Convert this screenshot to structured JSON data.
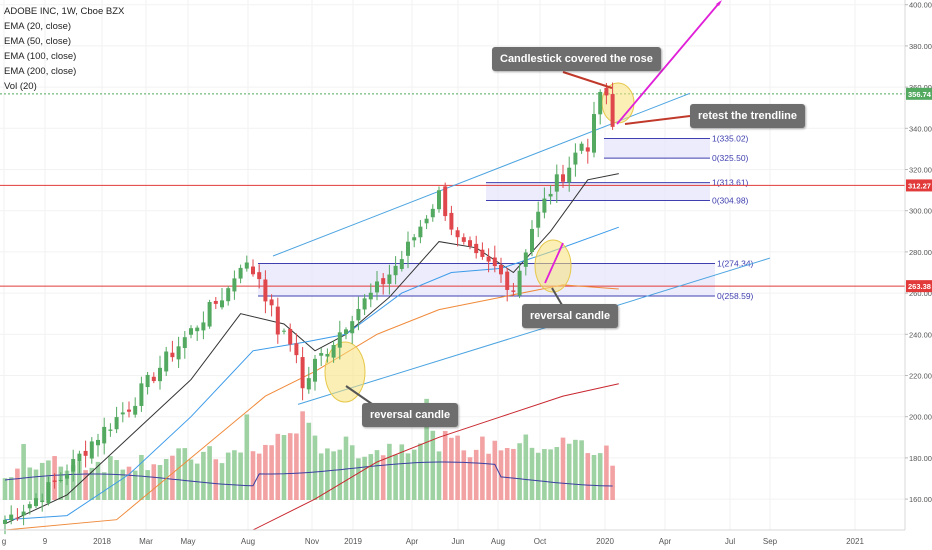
{
  "legend": {
    "symbol": "ADOBE INC, 1W, Cboe BZX",
    "indicators": [
      "EMA (20, close)",
      "EMA (50, close)",
      "EMA (100, close)",
      "EMA (200, close)",
      "Vol (20)"
    ]
  },
  "annotations": {
    "candlestick_covered": "Candlestick covered the rose",
    "retest": "retest the trendline",
    "reversal_1": "reversal candle",
    "reversal_2": "reversal candle"
  },
  "colors": {
    "up": "#53a960",
    "down": "#e0474c",
    "vol_up": "#9fd2a3",
    "vol_down": "#f3a2a3",
    "ema20": "#333333",
    "ema50": "#3d9be9",
    "ema100": "#f08a3b",
    "ema200": "#c8262e",
    "vol_ma": "#3a3fa0",
    "channel": "#4aa3e0",
    "fib": "#3f3fb0",
    "hline": "#e23a3a",
    "arrow": "#e020d8",
    "highlight": "#f7e27a",
    "callout": "#6e6e6e"
  },
  "chart_data": {
    "type": "candlestick",
    "timeframe": "1W",
    "y_axis_ticks": [
      160,
      180,
      200,
      220,
      240,
      260,
      280,
      300,
      320,
      340,
      360,
      380,
      400
    ],
    "ylim": [
      145,
      405
    ],
    "x_axis_ticks": [
      "g",
      "9",
      "2018",
      "Mar",
      "May",
      "Aug",
      "Nov",
      "2019",
      "Apr",
      "Jun",
      "Aug",
      "Oct",
      "2020",
      "Apr",
      "Jul",
      "Sep",
      "2021"
    ],
    "price_labels": [
      {
        "label": "356.74",
        "value": 356.74,
        "color": "#53a960"
      },
      {
        "label": "312.27",
        "value": 312.27,
        "color": "#e23a3a"
      },
      {
        "label": "263.38",
        "value": 263.38,
        "color": "#e23a3a"
      }
    ],
    "horizontal_lines": [
      {
        "value": 356.74,
        "style": "dotted",
        "color": "#53a960"
      },
      {
        "value": 312.27,
        "style": "solid",
        "color": "#e23a3a"
      },
      {
        "value": 263.38,
        "style": "solid",
        "color": "#e23a3a"
      }
    ],
    "fib_zones": [
      {
        "top": 274.34,
        "bottom": 258.59,
        "top_label": "1(274.34)",
        "bottom_label": "0(258.59)"
      },
      {
        "top": 313.61,
        "bottom": 304.98,
        "top_label": "1(313.61)",
        "bottom_label": "0(304.98)"
      },
      {
        "top": 335.02,
        "bottom": 325.5,
        "top_label": "1(335.02)",
        "bottom_label": "0(325.50)"
      }
    ],
    "close_anchors": [
      [
        0,
        150
      ],
      [
        4,
        158
      ],
      [
        9,
        170
      ],
      [
        14,
        188
      ],
      [
        20,
        205
      ],
      [
        26,
        228
      ],
      [
        31,
        245
      ],
      [
        36,
        262
      ],
      [
        38,
        275
      ],
      [
        41,
        268
      ],
      [
        44,
        242
      ],
      [
        47,
        232
      ],
      [
        48,
        213
      ],
      [
        50,
        226
      ],
      [
        53,
        237
      ],
      [
        56,
        250
      ],
      [
        60,
        262
      ],
      [
        64,
        277
      ],
      [
        68,
        298
      ],
      [
        70,
        308
      ],
      [
        73,
        285
      ],
      [
        76,
        276
      ],
      [
        79,
        272
      ],
      [
        82,
        262
      ],
      [
        85,
        292
      ],
      [
        88,
        310
      ],
      [
        91,
        322
      ],
      [
        93,
        333
      ],
      [
        94,
        332
      ],
      [
        95,
        343
      ],
      [
        96,
        358
      ],
      [
        97,
        353
      ],
      [
        98,
        340
      ]
    ],
    "volume_ylim": [
      0,
      120
    ],
    "volume_anchors": [
      [
        0,
        25
      ],
      [
        10,
        32
      ],
      [
        20,
        35
      ],
      [
        30,
        38
      ],
      [
        40,
        42
      ],
      [
        45,
        60
      ],
      [
        48,
        75
      ],
      [
        50,
        52
      ],
      [
        60,
        45
      ],
      [
        68,
        58
      ],
      [
        75,
        48
      ],
      [
        82,
        52
      ],
      [
        88,
        50
      ],
      [
        92,
        52
      ],
      [
        97,
        42
      ],
      [
        98,
        30
      ]
    ]
  }
}
